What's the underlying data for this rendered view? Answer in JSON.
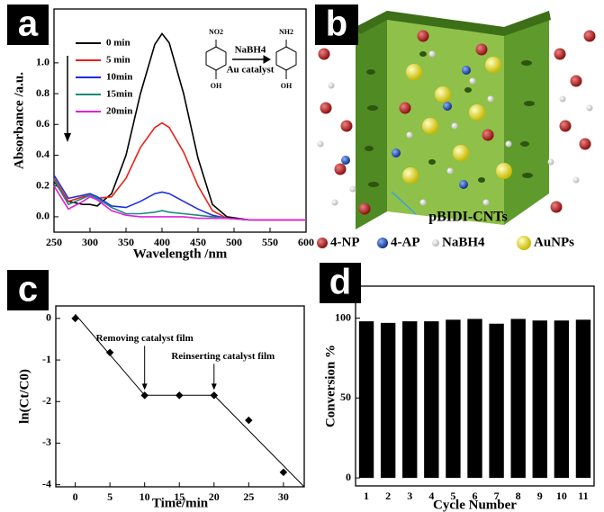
{
  "chart_data": [
    {
      "type": "line",
      "panel_label": "a",
      "x_label": "Wavelength /nm",
      "y_label": "Absorbance /a.u.",
      "x": [
        250,
        270,
        290,
        300,
        310,
        330,
        350,
        370,
        390,
        400,
        410,
        430,
        450,
        470,
        490,
        520,
        560,
        600
      ],
      "series": [
        {
          "name": "0 min",
          "color": "#000000",
          "values": [
            0.23,
            0.1,
            0.08,
            0.08,
            0.07,
            0.15,
            0.4,
            0.8,
            1.12,
            1.19,
            1.13,
            0.8,
            0.38,
            0.08,
            0.0,
            -0.02,
            -0.02,
            -0.02
          ]
        },
        {
          "name": "5 min",
          "color": "#e8201c",
          "values": [
            0.25,
            0.1,
            0.13,
            0.14,
            0.12,
            0.13,
            0.25,
            0.45,
            0.58,
            0.61,
            0.58,
            0.42,
            0.2,
            0.04,
            -0.01,
            -0.02,
            -0.02,
            -0.02
          ]
        },
        {
          "name": "10min",
          "color": "#1c2ee0",
          "values": [
            0.27,
            0.12,
            0.14,
            0.15,
            0.13,
            0.07,
            0.06,
            0.1,
            0.15,
            0.16,
            0.15,
            0.1,
            0.05,
            0.01,
            -0.01,
            -0.02,
            -0.02,
            -0.02
          ]
        },
        {
          "name": "15min",
          "color": "#1a8a7a",
          "values": [
            0.24,
            0.08,
            0.12,
            0.14,
            0.12,
            0.06,
            0.02,
            0.02,
            0.03,
            0.04,
            0.03,
            0.02,
            0.01,
            0.0,
            -0.01,
            -0.02,
            -0.02,
            -0.02
          ]
        },
        {
          "name": "20min",
          "color": "#e020e0",
          "values": [
            0.2,
            0.05,
            0.1,
            0.13,
            0.11,
            0.04,
            0.01,
            0.0,
            0.0,
            0.0,
            0.0,
            0.0,
            -0.01,
            -0.01,
            -0.01,
            -0.02,
            -0.02,
            -0.02
          ]
        }
      ],
      "xlim": [
        250,
        600
      ],
      "xticks": [
        250,
        300,
        350,
        400,
        450,
        500,
        550,
        600
      ],
      "ylim": [
        -0.1,
        1.35
      ],
      "yticks": [
        {
          "value": 0,
          "label": "0.0"
        },
        0.2,
        0.4,
        0.6,
        0.8,
        {
          "value": 1,
          "label": "1.0"
        }
      ],
      "annotations": [
        "NO2",
        "OH",
        "NaBH4",
        "Au catalyst",
        "NH2",
        "OH"
      ]
    },
    {
      "type": "scatter",
      "panel_label": "c",
      "x_label": "Time/min",
      "y_label": "ln(Ct/C0)",
      "x": [
        0,
        5,
        10,
        15,
        20,
        25,
        30
      ],
      "values": [
        0.0,
        -0.82,
        -1.85,
        -1.85,
        -1.85,
        -2.45,
        -3.7
      ],
      "fit_line": {
        "x": [
          0,
          10,
          20,
          33
        ],
        "values": [
          0.1,
          -1.85,
          -1.85,
          -4.05
        ]
      },
      "xlim": [
        -2.8,
        33
      ],
      "xticks": [
        0,
        5,
        10,
        15,
        20,
        25,
        30
      ],
      "ylim": [
        -4.05,
        0.3
      ],
      "yticks": [
        0,
        -1,
        -2,
        -3,
        -4
      ],
      "annotations": [
        "Removing catalyst film",
        "Reinserting catalyst film"
      ]
    },
    {
      "type": "bar",
      "panel_label": "d",
      "x_label": "Cycle Number",
      "y_label": "Conversion %",
      "categories": [
        "1",
        "2",
        "3",
        "4",
        "5",
        "6",
        "7",
        "8",
        "9",
        "10",
        "11"
      ],
      "values": [
        98,
        97,
        98,
        98,
        99,
        99.5,
        96.5,
        99.5,
        98.5,
        98.5,
        99
      ],
      "color": "#000000",
      "ylim": [
        -5,
        120
      ],
      "yticks": [
        0,
        50,
        100
      ]
    }
  ],
  "panel_b": {
    "panel_label": "b",
    "callout": "pBIDI-CNTs",
    "legend": [
      "4-NP",
      "4-AP",
      "NaBH4",
      "AuNPs"
    ]
  }
}
